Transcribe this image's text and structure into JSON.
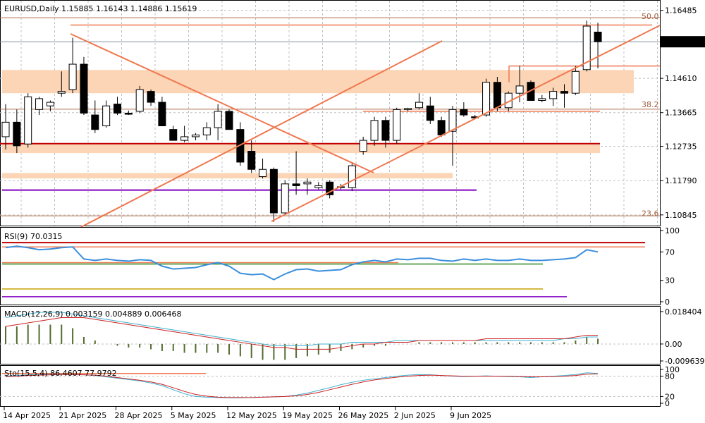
{
  "header": {
    "symbol_line": "EURUSD,Daily  1.15885  1.16143  1.14886  1.15619"
  },
  "colors": {
    "bull": "#ffffff",
    "bear": "#000000",
    "grid": "#c0c0c0",
    "trend": "#f07850",
    "zone": "#fbd5b5",
    "support": "#c00000",
    "purple": "#8000c0",
    "rsi_line": "#3b8fdc",
    "macd_signal": "#cc2020",
    "macd_line": "#40b0d0",
    "macd_hist": "#556b2f",
    "sto_main": "#40b0d0",
    "sto_signal": "#cc2020",
    "green": "#2e8b22",
    "gold": "#c8a000"
  },
  "price_panel": {
    "ylim": [
      1.1055,
      1.1675
    ],
    "ticks": [
      "1.16485",
      "1.14610",
      "1.13665",
      "1.12735",
      "1.11790",
      "1.10845"
    ],
    "tick_values": [
      1.16485,
      1.1461,
      1.13665,
      1.12735,
      1.1179,
      1.10845
    ],
    "current_price": "1.15619",
    "current_value": 1.15619,
    "fib_labels": [
      {
        "label": "50.0",
        "value": 1.1619
      },
      {
        "label": "38.2",
        "value": 1.1376
      },
      {
        "label": "23.6",
        "value": 1.1075
      }
    ]
  },
  "chart_data": {
    "type": "candlestick",
    "title": "EURUSD,Daily",
    "x_labels": [
      "14 Apr 2025",
      "21 Apr 2025",
      "28 Apr 2025",
      "5 May 2025",
      "12 May 2025",
      "19 May 2025",
      "26 May 2025",
      "2 Jun 2025",
      "9 Jun 2025"
    ],
    "candles": [
      {
        "o": 1.13,
        "h": 1.139,
        "l": 1.1265,
        "c": 1.134
      },
      {
        "o": 1.134,
        "h": 1.1375,
        "l": 1.1255,
        "c": 1.1275
      },
      {
        "o": 1.128,
        "h": 1.142,
        "l": 1.127,
        "c": 1.141
      },
      {
        "o": 1.1375,
        "h": 1.141,
        "l": 1.136,
        "c": 1.1405
      },
      {
        "o": 1.1385,
        "h": 1.14,
        "l": 1.137,
        "c": 1.1395
      },
      {
        "o": 1.142,
        "h": 1.148,
        "l": 1.141,
        "c": 1.1425
      },
      {
        "o": 1.143,
        "h": 1.1573,
        "l": 1.142,
        "c": 1.15
      },
      {
        "o": 1.15,
        "h": 1.152,
        "l": 1.136,
        "c": 1.1365
      },
      {
        "o": 1.136,
        "h": 1.14,
        "l": 1.131,
        "c": 1.132
      },
      {
        "o": 1.133,
        "h": 1.14,
        "l": 1.1325,
        "c": 1.1385
      },
      {
        "o": 1.139,
        "h": 1.141,
        "l": 1.136,
        "c": 1.1365
      },
      {
        "o": 1.1365,
        "h": 1.1372,
        "l": 1.136,
        "c": 1.1362
      },
      {
        "o": 1.137,
        "h": 1.144,
        "l": 1.1365,
        "c": 1.143
      },
      {
        "o": 1.1425,
        "h": 1.143,
        "l": 1.1385,
        "c": 1.1395
      },
      {
        "o": 1.1395,
        "h": 1.141,
        "l": 1.133,
        "c": 1.133
      },
      {
        "o": 1.132,
        "h": 1.133,
        "l": 1.129,
        "c": 1.129
      },
      {
        "o": 1.129,
        "h": 1.133,
        "l": 1.1285,
        "c": 1.13
      },
      {
        "o": 1.13,
        "h": 1.131,
        "l": 1.129,
        "c": 1.1305
      },
      {
        "o": 1.1305,
        "h": 1.134,
        "l": 1.129,
        "c": 1.1325
      },
      {
        "o": 1.1325,
        "h": 1.139,
        "l": 1.129,
        "c": 1.137
      },
      {
        "o": 1.137,
        "h": 1.1375,
        "l": 1.132,
        "c": 1.132
      },
      {
        "o": 1.132,
        "h": 1.134,
        "l": 1.122,
        "c": 1.123
      },
      {
        "o": 1.126,
        "h": 1.129,
        "l": 1.12,
        "c": 1.121
      },
      {
        "o": 1.119,
        "h": 1.124,
        "l": 1.1185,
        "c": 1.121
      },
      {
        "o": 1.121,
        "h": 1.1215,
        "l": 1.1065,
        "c": 1.109
      },
      {
        "o": 1.109,
        "h": 1.118,
        "l": 1.1085,
        "c": 1.117
      },
      {
        "o": 1.117,
        "h": 1.126,
        "l": 1.114,
        "c": 1.1165
      },
      {
        "o": 1.117,
        "h": 1.1185,
        "l": 1.114,
        "c": 1.1175
      },
      {
        "o": 1.116,
        "h": 1.1175,
        "l": 1.1155,
        "c": 1.1165
      },
      {
        "o": 1.1175,
        "h": 1.118,
        "l": 1.113,
        "c": 1.114
      },
      {
        "o": 1.116,
        "h": 1.117,
        "l": 1.1155,
        "c": 1.1162
      },
      {
        "o": 1.116,
        "h": 1.123,
        "l": 1.115,
        "c": 1.122
      },
      {
        "o": 1.126,
        "h": 1.13,
        "l": 1.125,
        "c": 1.129
      },
      {
        "o": 1.129,
        "h": 1.1355,
        "l": 1.1275,
        "c": 1.1345
      },
      {
        "o": 1.1345,
        "h": 1.1355,
        "l": 1.127,
        "c": 1.129
      },
      {
        "o": 1.129,
        "h": 1.138,
        "l": 1.128,
        "c": 1.1375
      },
      {
        "o": 1.1375,
        "h": 1.138,
        "l": 1.137,
        "c": 1.1378
      },
      {
        "o": 1.138,
        "h": 1.142,
        "l": 1.1375,
        "c": 1.1395
      },
      {
        "o": 1.1385,
        "h": 1.141,
        "l": 1.1335,
        "c": 1.1345
      },
      {
        "o": 1.1345,
        "h": 1.1355,
        "l": 1.13,
        "c": 1.1305
      },
      {
        "o": 1.1315,
        "h": 1.1385,
        "l": 1.122,
        "c": 1.1375
      },
      {
        "o": 1.1375,
        "h": 1.1395,
        "l": 1.1355,
        "c": 1.136
      },
      {
        "o": 1.1355,
        "h": 1.136,
        "l": 1.135,
        "c": 1.1352
      },
      {
        "o": 1.136,
        "h": 1.146,
        "l": 1.1355,
        "c": 1.145
      },
      {
        "o": 1.145,
        "h": 1.1465,
        "l": 1.137,
        "c": 1.138
      },
      {
        "o": 1.138,
        "h": 1.1425,
        "l": 1.137,
        "c": 1.142
      },
      {
        "o": 1.142,
        "h": 1.1495,
        "l": 1.1395,
        "c": 1.144
      },
      {
        "o": 1.145,
        "h": 1.1455,
        "l": 1.14,
        "c": 1.14
      },
      {
        "o": 1.14,
        "h": 1.1415,
        "l": 1.1395,
        "c": 1.1405
      },
      {
        "o": 1.1405,
        "h": 1.1435,
        "l": 1.1385,
        "c": 1.1425
      },
      {
        "o": 1.1425,
        "h": 1.1445,
        "l": 1.138,
        "c": 1.142
      },
      {
        "o": 1.142,
        "h": 1.1495,
        "l": 1.1415,
        "c": 1.148
      },
      {
        "o": 1.1485,
        "h": 1.162,
        "l": 1.148,
        "c": 1.1605
      },
      {
        "o": 1.15885,
        "h": 1.16143,
        "l": 1.14886,
        "c": 1.15619
      }
    ]
  },
  "rsi_panel": {
    "label": "RSI(9) 70.0315",
    "ticks": [
      "100",
      "70",
      "30",
      "0"
    ],
    "tick_values": [
      100,
      70,
      30,
      0
    ],
    "values": [
      76,
      78,
      76,
      73,
      74,
      76,
      77,
      60,
      58,
      60,
      58,
      57,
      59,
      58,
      50,
      46,
      47,
      48,
      52,
      55,
      50,
      40,
      38,
      39,
      31,
      39,
      45,
      46,
      43,
      44,
      45,
      52,
      56,
      58,
      56,
      60,
      59,
      61,
      61,
      58,
      57,
      60,
      58,
      60,
      58,
      58,
      60,
      58,
      58,
      59,
      60,
      62,
      73,
      70
    ]
  },
  "macd_panel": {
    "label": "MACD(12,26,9) 0.003159 0.004889 0.006468",
    "ticks": [
      "0.018404",
      "0.00",
      "-0.009639"
    ],
    "tick_values": [
      0.018404,
      0.0,
      -0.009639
    ],
    "hist": [
      0.01,
      0.01,
      0.011,
      0.011,
      0.011,
      0.011,
      0.009,
      0.004,
      0.002,
      0.0,
      -0.001,
      -0.002,
      -0.002,
      -0.003,
      -0.004,
      -0.004,
      -0.005,
      -0.005,
      -0.005,
      -0.005,
      -0.006,
      -0.007,
      -0.008,
      -0.009,
      -0.009,
      -0.009,
      -0.008,
      -0.007,
      -0.006,
      -0.005,
      -0.004,
      -0.003,
      -0.002,
      -0.001,
      -0.001,
      0.0,
      0.0,
      0.001,
      0.001,
      0.001,
      0.001,
      0.001,
      0.001,
      0.001,
      0.001,
      0.001,
      0.001,
      0.001,
      0.001,
      0.001,
      0.001,
      0.002,
      0.004,
      0.003
    ],
    "signal": [
      0.01,
      0.011,
      0.012,
      0.013,
      0.014,
      0.015,
      0.015,
      0.015,
      0.014,
      0.013,
      0.012,
      0.011,
      0.01,
      0.009,
      0.008,
      0.007,
      0.006,
      0.005,
      0.004,
      0.003,
      0.002,
      0.001,
      0.0,
      -0.001,
      -0.002,
      -0.002,
      -0.003,
      -0.003,
      -0.003,
      -0.003,
      -0.002,
      -0.001,
      0.0,
      0.0,
      0.001,
      0.001,
      0.001,
      0.002,
      0.002,
      0.002,
      0.002,
      0.002,
      0.002,
      0.003,
      0.003,
      0.003,
      0.003,
      0.003,
      0.003,
      0.003,
      0.003,
      0.004,
      0.005,
      0.005
    ],
    "macd": [
      0.015,
      0.016,
      0.017,
      0.018,
      0.018,
      0.018,
      0.017,
      0.016,
      0.015,
      0.014,
      0.013,
      0.012,
      0.011,
      0.01,
      0.009,
      0.008,
      0.007,
      0.006,
      0.005,
      0.004,
      0.003,
      0.002,
      0.001,
      0.0,
      -0.001,
      -0.001,
      -0.001,
      -0.001,
      0.0,
      0.0,
      0.0,
      0.001,
      0.001,
      0.001,
      0.001,
      0.002,
      0.002,
      0.002,
      0.002,
      0.002,
      0.002,
      0.002,
      0.002,
      0.002,
      0.002,
      0.002,
      0.002,
      0.002,
      0.002,
      0.002,
      0.003,
      0.003,
      0.004,
      0.004
    ]
  },
  "sto_panel": {
    "label": "Sto(15,5,4) 86.4607 77.9792",
    "ticks": [
      "100",
      "80",
      "20",
      "0"
    ],
    "tick_values": [
      100,
      80,
      20,
      0
    ],
    "main": [
      80,
      82,
      84,
      85,
      86,
      86,
      85,
      84,
      82,
      78,
      74,
      70,
      66,
      60,
      52,
      40,
      28,
      20,
      18,
      17,
      16,
      16,
      17,
      18,
      19,
      20,
      24,
      30,
      38,
      46,
      55,
      62,
      68,
      72,
      76,
      80,
      83,
      85,
      84,
      82,
      80,
      79,
      80,
      81,
      80,
      79,
      78,
      76,
      78,
      80,
      82,
      85,
      90,
      88
    ],
    "signal": [
      78,
      80,
      82,
      83,
      84,
      85,
      85,
      84,
      83,
      80,
      76,
      72,
      68,
      63,
      56,
      46,
      35,
      26,
      21,
      18,
      17,
      17,
      17,
      18,
      19,
      20,
      22,
      26,
      32,
      40,
      48,
      56,
      63,
      69,
      73,
      77,
      80,
      82,
      83,
      82,
      81,
      80,
      80,
      80,
      80,
      80,
      79,
      78,
      78,
      79,
      80,
      82,
      86,
      87
    ]
  }
}
